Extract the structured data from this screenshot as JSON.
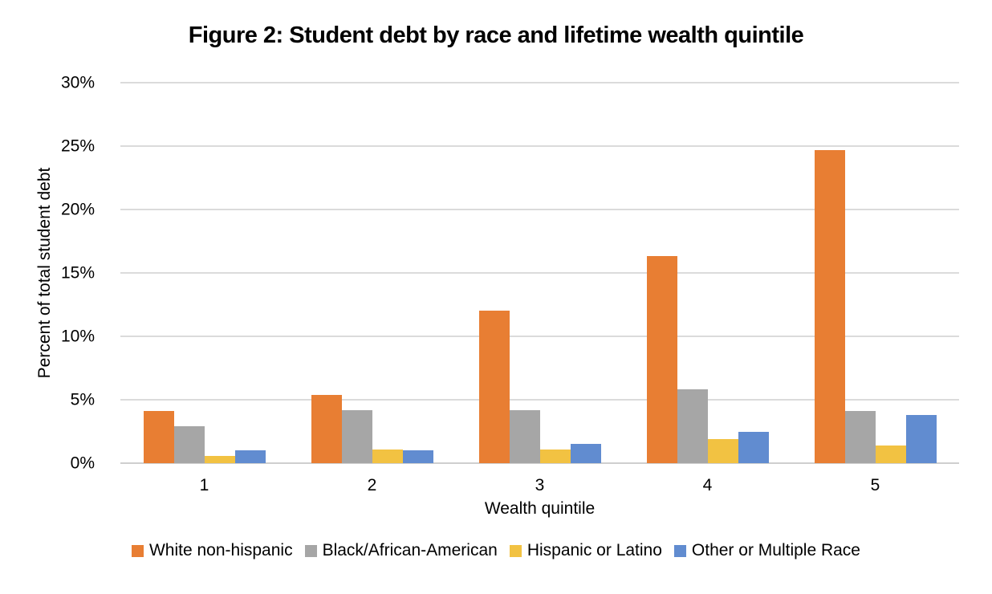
{
  "chart_data": {
    "type": "bar",
    "title": "Figure 2: Student debt by race and lifetime wealth quintile",
    "xlabel": "Wealth quintile",
    "ylabel": "Percent of total student debt",
    "categories": [
      "1",
      "2",
      "3",
      "4",
      "5"
    ],
    "series": [
      {
        "name": "White non-hispanic",
        "color": "#e87e33",
        "values": [
          4.1,
          5.4,
          12.0,
          16.3,
          24.7
        ]
      },
      {
        "name": "Black/African-American",
        "color": "#a6a6a6",
        "values": [
          2.9,
          4.2,
          4.2,
          5.8,
          4.1
        ]
      },
      {
        "name": "Hispanic or Latino",
        "color": "#f2c242",
        "values": [
          0.6,
          1.1,
          1.1,
          1.9,
          1.4
        ]
      },
      {
        "name": "Other or Multiple Race",
        "color": "#618cd0",
        "values": [
          1.0,
          1.0,
          1.5,
          2.5,
          3.8
        ]
      }
    ],
    "ylim": [
      0,
      30
    ],
    "ytick_step": 5,
    "ytick_labels": [
      "0%",
      "5%",
      "10%",
      "15%",
      "20%",
      "25%",
      "30%"
    ],
    "grid": true,
    "legend_position": "bottom",
    "colors": {
      "gridline": "#dbdbdb",
      "baseline": "#cfcfcf",
      "text": "#000000",
      "background": "#ffffff"
    }
  }
}
